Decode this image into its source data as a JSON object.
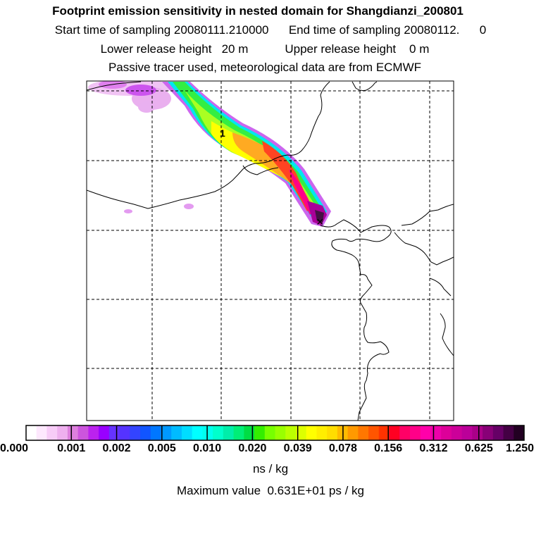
{
  "header": {
    "title": "Footprint emission sensitivity in nested domain for Shangdianzi_200801",
    "sampling_line": "Start time of sampling 20080111.210000      End time of sampling 20080112.      0",
    "release_line": "Lower release height   20 m           Upper release height    0 m",
    "tracer_line": "Passive tracer used, meteorological data are from ECMWF"
  },
  "map": {
    "release_marker_label": "1",
    "release_point_symbol": "×"
  },
  "colorbar": {
    "tick_labels": [
      "0.000",
      "0.001",
      "0.002",
      "0.005",
      "0.010",
      "0.020",
      "0.039",
      "0.078",
      "0.156",
      "0.312",
      "0.625",
      "1.250"
    ],
    "colors": [
      "#ffffff",
      "#fde8fd",
      "#f7ccf7",
      "#eeb0ee",
      "#dd80dd",
      "#cc55dd",
      "#bb22ee",
      "#9900ff",
      "#6633ff",
      "#5533ff",
      "#3344ff",
      "#1155ff",
      "#0077ff",
      "#0099ff",
      "#00bbff",
      "#00ddff",
      "#00ffff",
      "#00ffee",
      "#00ffcc",
      "#00eeaa",
      "#00ee77",
      "#00dd44",
      "#33ee00",
      "#77ff00",
      "#99ff00",
      "#bbff00",
      "#ddff00",
      "#ffff00",
      "#ffee00",
      "#ffdd00",
      "#ffbb00",
      "#ff9900",
      "#ff7700",
      "#ff5500",
      "#ff3300",
      "#ff0022",
      "#ff0066",
      "#ff0088",
      "#ff00aa",
      "#ee00aa",
      "#dd0099",
      "#cc0099",
      "#bb0099",
      "#aa0088",
      "#880077",
      "#660066",
      "#440044",
      "#220022"
    ],
    "units": "ns / kg"
  },
  "footer": {
    "max_value": "Maximum value  0.631E+01 ps / kg"
  }
}
